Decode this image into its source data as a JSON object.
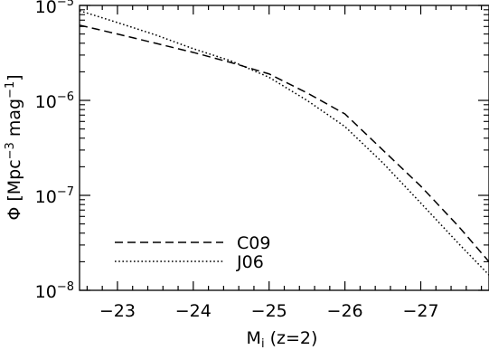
{
  "chart_data": {
    "type": "line",
    "xlabel": {
      "main": "M",
      "sub": "i",
      "rest": " (z=2)"
    },
    "ylabel": {
      "phi": "Φ",
      "bracket_open": " [Mpc",
      "exp1": "−3",
      "mid": " mag",
      "exp2": "−1",
      "bracket_close": "]"
    },
    "xlim": [
      -22.5,
      -27.9
    ],
    "ylim": [
      1e-08,
      1e-05
    ],
    "yscale": "log",
    "x_ticks": [
      -23,
      -24,
      -25,
      -26,
      -27
    ],
    "x_tick_labels": [
      "−23",
      "−24",
      "−25",
      "−26",
      "−27"
    ],
    "y_ticks": [
      {
        "value": 1e-05,
        "base": "10",
        "exp": "−5"
      },
      {
        "value": 1e-06,
        "base": "10",
        "exp": "−6"
      },
      {
        "value": 1e-07,
        "base": "10",
        "exp": "−7"
      },
      {
        "value": 1e-08,
        "base": "10",
        "exp": "−8"
      }
    ],
    "grid": false,
    "legend_position": "bottom-left",
    "series": [
      {
        "name": "C09",
        "style": "dashed",
        "x": [
          -22.5,
          -23.0,
          -23.5,
          -24.0,
          -24.5,
          -25.0,
          -25.5,
          -26.0,
          -26.5,
          -27.0,
          -27.5,
          -27.9
        ],
        "y": [
          6.2e-06,
          5e-06,
          4e-06,
          3.2e-06,
          2.5e-06,
          1.9e-06,
          1.2e-06,
          7.2e-07,
          3e-07,
          1.25e-07,
          4.7e-08,
          2e-08
        ]
      },
      {
        "name": "J06",
        "style": "dotted",
        "x": [
          -22.5,
          -23.0,
          -23.5,
          -24.0,
          -24.5,
          -25.0,
          -25.5,
          -26.0,
          -26.5,
          -27.0,
          -27.5,
          -27.9
        ],
        "y": [
          8.8e-06,
          6.6e-06,
          4.9e-06,
          3.5e-06,
          2.6e-06,
          1.75e-06,
          1e-06,
          5.3e-07,
          2.2e-07,
          8.3e-08,
          3.1e-08,
          1.45e-08
        ]
      }
    ]
  }
}
